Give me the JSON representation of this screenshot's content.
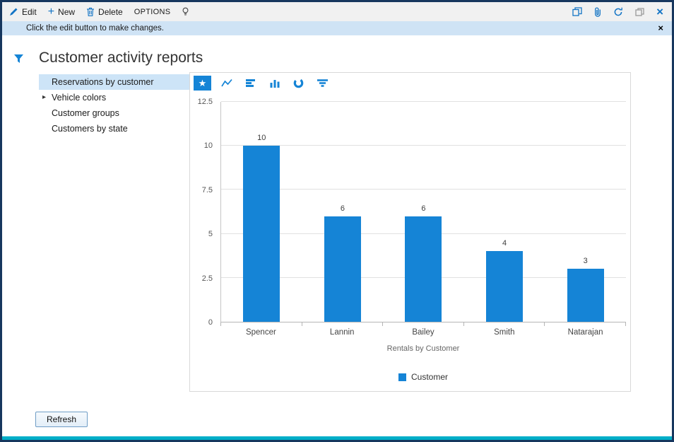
{
  "toolbar": {
    "edit_label": "Edit",
    "new_label": "New",
    "delete_label": "Delete",
    "options_label": "OPTIONS"
  },
  "notification": {
    "message": "Click the edit button to make changes."
  },
  "page": {
    "title": "Customer activity reports"
  },
  "report_list": {
    "items": [
      {
        "label": "Reservations by customer",
        "selected": true,
        "expandable": false
      },
      {
        "label": "Vehicle colors",
        "selected": false,
        "expandable": true
      },
      {
        "label": "Customer groups",
        "selected": false,
        "expandable": false
      },
      {
        "label": "Customers by state",
        "selected": false,
        "expandable": false
      }
    ]
  },
  "chart_data": {
    "type": "bar",
    "categories": [
      "Spencer",
      "Lannin",
      "Bailey",
      "Smith",
      "Natarajan"
    ],
    "values": [
      10,
      6,
      6,
      4,
      3
    ],
    "title": "",
    "xlabel": "Rentals by Customer",
    "ylabel": "",
    "ylim": [
      0,
      12.5
    ],
    "yticks": [
      0,
      2.5,
      5,
      7.5,
      10,
      12.5
    ],
    "legend": [
      "Customer"
    ],
    "bar_color": "#1584d6",
    "grid": true,
    "legend_position": "bottom"
  },
  "colors": {
    "accent_blue": "#1584d6",
    "icon_blue": "#1374c5",
    "notification_bg": "#cfe3f5",
    "selected_item_bg": "#cde4f7",
    "window_border": "#17375e",
    "bottom_accent": "#00aec8"
  },
  "footer": {
    "refresh_label": "Refresh"
  }
}
